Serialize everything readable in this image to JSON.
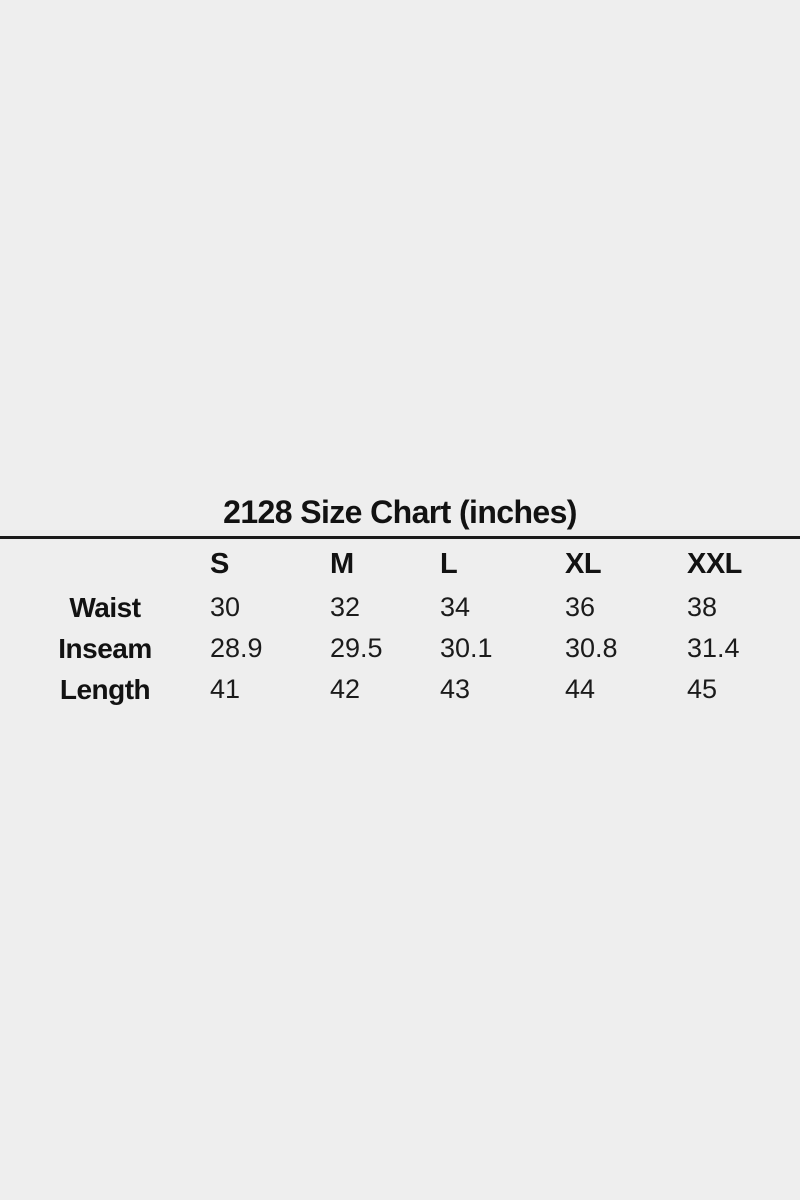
{
  "page": {
    "background_color": "#eeeeee",
    "text_color": "#131313",
    "rule_color": "#1a1a1a"
  },
  "size_chart": {
    "title": "2128 Size Chart (inches)",
    "columns": [
      "S",
      "M",
      "L",
      "XL",
      "XXL"
    ],
    "rows": [
      {
        "label": "Waist",
        "values": [
          "30",
          "32",
          "34",
          "36",
          "38"
        ]
      },
      {
        "label": "Inseam",
        "values": [
          "28.9",
          "29.5",
          "30.1",
          "30.8",
          "31.4"
        ]
      },
      {
        "label": "Length",
        "values": [
          "41",
          "42",
          "43",
          "44",
          "45"
        ]
      }
    ]
  },
  "chart_data": {
    "type": "table",
    "title": "2128 Size Chart (inches)",
    "units": "inches",
    "columns": [
      "",
      "S",
      "M",
      "L",
      "XL",
      "XXL"
    ],
    "rows": [
      [
        "Waist",
        30,
        32,
        34,
        36,
        38
      ],
      [
        "Inseam",
        28.9,
        29.5,
        30.1,
        30.8,
        31.4
      ],
      [
        "Length",
        41,
        42,
        43,
        44,
        45
      ]
    ]
  }
}
